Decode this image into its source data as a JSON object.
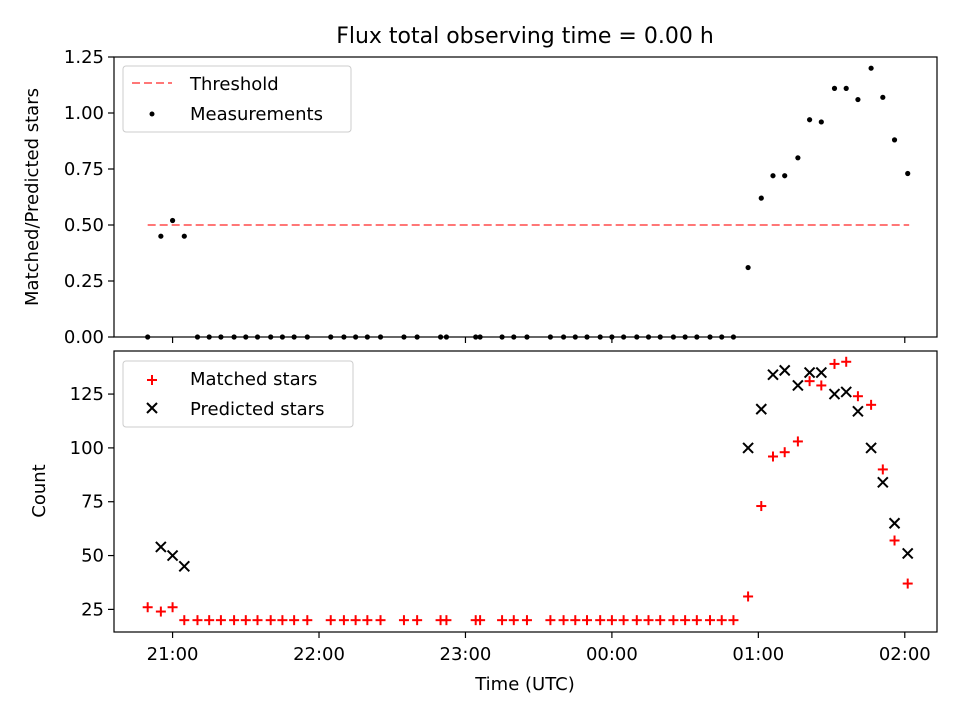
{
  "chart_data": [
    {
      "type": "scatter",
      "title": "Flux total observing time = 0.00 h",
      "xlabel": "",
      "ylabel": "Matched/Predicted stars",
      "x_axis_type": "time",
      "xlim_hours": [
        20.6,
        26.22
      ],
      "ylim": [
        0,
        1.25
      ],
      "yticks": [
        {
          "value": 0.0,
          "label": "0.00"
        },
        {
          "value": 0.25,
          "label": "0.25"
        },
        {
          "value": 0.5,
          "label": "0.50"
        },
        {
          "value": 0.75,
          "label": "0.75"
        },
        {
          "value": 1.0,
          "label": "1.00"
        },
        {
          "value": 1.25,
          "label": "1.25"
        }
      ],
      "xticks_hours": [
        21,
        23,
        24,
        26
      ],
      "legend_position": "top-left",
      "threshold": {
        "name": "Threshold",
        "value": 0.5,
        "x_range_hours": [
          20.83,
          26.03
        ],
        "color": "#ff7777",
        "style": "dashed"
      },
      "series": [
        {
          "name": "Measurements",
          "marker": "dot",
          "color": "#000000",
          "points": [
            [
              20.83,
              0.0
            ],
            [
              20.92,
              0.45
            ],
            [
              21.0,
              0.52
            ],
            [
              21.08,
              0.45
            ],
            [
              21.17,
              0.0
            ],
            [
              21.25,
              0.0
            ],
            [
              21.33,
              0.0
            ],
            [
              21.42,
              0.0
            ],
            [
              21.5,
              0.0
            ],
            [
              21.58,
              0.0
            ],
            [
              21.67,
              0.0
            ],
            [
              21.75,
              0.0
            ],
            [
              21.83,
              0.0
            ],
            [
              21.92,
              0.0
            ],
            [
              22.08,
              0.0
            ],
            [
              22.17,
              0.0
            ],
            [
              22.25,
              0.0
            ],
            [
              22.33,
              0.0
            ],
            [
              22.42,
              0.0
            ],
            [
              22.58,
              0.0
            ],
            [
              22.67,
              0.0
            ],
            [
              22.83,
              0.0
            ],
            [
              22.87,
              0.0
            ],
            [
              23.07,
              0.0
            ],
            [
              23.1,
              0.0
            ],
            [
              23.25,
              0.0
            ],
            [
              23.33,
              0.0
            ],
            [
              23.42,
              0.0
            ],
            [
              23.58,
              0.0
            ],
            [
              23.67,
              0.0
            ],
            [
              23.75,
              0.0
            ],
            [
              23.83,
              0.0
            ],
            [
              23.92,
              0.0
            ],
            [
              24.0,
              0.0
            ],
            [
              24.08,
              0.0
            ],
            [
              24.17,
              0.0
            ],
            [
              24.25,
              0.0
            ],
            [
              24.33,
              0.0
            ],
            [
              24.42,
              0.0
            ],
            [
              24.5,
              0.0
            ],
            [
              24.58,
              0.0
            ],
            [
              24.67,
              0.0
            ],
            [
              24.75,
              0.0
            ],
            [
              24.83,
              0.0
            ],
            [
              24.93,
              0.31
            ],
            [
              25.02,
              0.62
            ],
            [
              25.1,
              0.72
            ],
            [
              25.18,
              0.72
            ],
            [
              25.27,
              0.8
            ],
            [
              25.35,
              0.97
            ],
            [
              25.43,
              0.96
            ],
            [
              25.52,
              1.11
            ],
            [
              25.6,
              1.11
            ],
            [
              25.68,
              1.06
            ],
            [
              25.77,
              1.2
            ],
            [
              25.85,
              1.07
            ],
            [
              25.93,
              0.88
            ],
            [
              26.02,
              0.73
            ]
          ]
        }
      ]
    },
    {
      "type": "scatter",
      "title": "",
      "xlabel": "Time (UTC)",
      "ylabel": "Count",
      "x_axis_type": "time",
      "xlim_hours": [
        20.6,
        26.22
      ],
      "ylim": [
        14.5,
        145
      ],
      "yticks": [
        {
          "value": 25,
          "label": "25"
        },
        {
          "value": 50,
          "label": "50"
        },
        {
          "value": 75,
          "label": "75"
        },
        {
          "value": 100,
          "label": "100"
        },
        {
          "value": 125,
          "label": "125"
        }
      ],
      "xticks": [
        {
          "hour": 21,
          "label": "21:00"
        },
        {
          "hour": 22,
          "label": "22:00"
        },
        {
          "hour": 23,
          "label": "23:00"
        },
        {
          "hour": 24,
          "label": "00:00"
        },
        {
          "hour": 25,
          "label": "01:00"
        },
        {
          "hour": 26,
          "label": "02:00"
        }
      ],
      "legend_position": "top-left",
      "series": [
        {
          "name": "Matched stars",
          "marker": "plus",
          "color": "#ff0000",
          "points": [
            [
              20.83,
              26
            ],
            [
              20.92,
              24
            ],
            [
              21.0,
              26
            ],
            [
              21.08,
              20
            ],
            [
              21.17,
              20
            ],
            [
              21.25,
              20
            ],
            [
              21.33,
              20
            ],
            [
              21.42,
              20
            ],
            [
              21.5,
              20
            ],
            [
              21.58,
              20
            ],
            [
              21.67,
              20
            ],
            [
              21.75,
              20
            ],
            [
              21.83,
              20
            ],
            [
              21.92,
              20
            ],
            [
              22.08,
              20
            ],
            [
              22.17,
              20
            ],
            [
              22.25,
              20
            ],
            [
              22.33,
              20
            ],
            [
              22.42,
              20
            ],
            [
              22.58,
              20
            ],
            [
              22.67,
              20
            ],
            [
              22.83,
              20
            ],
            [
              22.87,
              20
            ],
            [
              23.07,
              20
            ],
            [
              23.1,
              20
            ],
            [
              23.25,
              20
            ],
            [
              23.33,
              20
            ],
            [
              23.42,
              20
            ],
            [
              23.58,
              20
            ],
            [
              23.67,
              20
            ],
            [
              23.75,
              20
            ],
            [
              23.83,
              20
            ],
            [
              23.92,
              20
            ],
            [
              24.0,
              20
            ],
            [
              24.08,
              20
            ],
            [
              24.17,
              20
            ],
            [
              24.25,
              20
            ],
            [
              24.33,
              20
            ],
            [
              24.42,
              20
            ],
            [
              24.5,
              20
            ],
            [
              24.58,
              20
            ],
            [
              24.67,
              20
            ],
            [
              24.75,
              20
            ],
            [
              24.83,
              20
            ],
            [
              24.93,
              31
            ],
            [
              25.02,
              73
            ],
            [
              25.1,
              96
            ],
            [
              25.18,
              98
            ],
            [
              25.27,
              103
            ],
            [
              25.35,
              131
            ],
            [
              25.43,
              129
            ],
            [
              25.52,
              139
            ],
            [
              25.6,
              140
            ],
            [
              25.68,
              124
            ],
            [
              25.77,
              120
            ],
            [
              25.85,
              90
            ],
            [
              25.93,
              57
            ],
            [
              26.02,
              37
            ]
          ]
        },
        {
          "name": "Predicted stars",
          "marker": "cross",
          "color": "#000000",
          "points": [
            [
              20.92,
              54
            ],
            [
              21.0,
              50
            ],
            [
              21.08,
              45
            ],
            [
              24.93,
              100
            ],
            [
              25.02,
              118
            ],
            [
              25.1,
              134
            ],
            [
              25.18,
              136
            ],
            [
              25.27,
              129
            ],
            [
              25.35,
              135
            ],
            [
              25.43,
              135
            ],
            [
              25.52,
              125
            ],
            [
              25.6,
              126
            ],
            [
              25.68,
              117
            ],
            [
              25.77,
              100
            ],
            [
              25.85,
              84
            ],
            [
              25.93,
              65
            ],
            [
              26.02,
              51
            ]
          ]
        }
      ]
    }
  ]
}
